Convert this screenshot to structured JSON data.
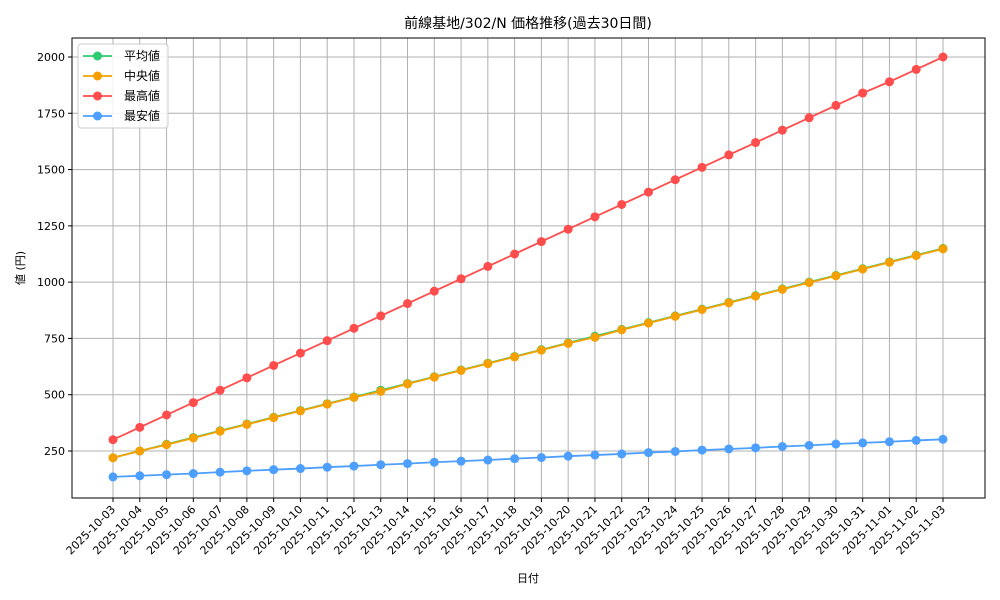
{
  "chart_data": {
    "type": "line",
    "title": "前線基地/302/N 価格推移(過去30日間)",
    "xlabel": "日付",
    "ylabel": "値 (円)",
    "ylim": [
      95,
      2080
    ],
    "yticks": [
      250,
      500,
      750,
      1000,
      1250,
      1500,
      1750,
      2000
    ],
    "grid": true,
    "legend_position": "upper left",
    "categories": [
      "2025-10-03",
      "2025-10-04",
      "2025-10-05",
      "2025-10-06",
      "2025-10-07",
      "2025-10-08",
      "2025-10-09",
      "2025-10-10",
      "2025-10-11",
      "2025-10-12",
      "2025-10-13",
      "2025-10-14",
      "2025-10-15",
      "2025-10-16",
      "2025-10-17",
      "2025-10-18",
      "2025-10-19",
      "2025-10-20",
      "2025-10-21",
      "2025-10-22",
      "2025-10-23",
      "2025-10-24",
      "2025-10-25",
      "2025-10-26",
      "2025-10-27",
      "2025-10-28",
      "2025-10-29",
      "2025-10-30",
      "2025-10-31",
      "2025-11-01",
      "2025-11-02",
      "2025-11-03"
    ],
    "series": [
      {
        "name": "平均値",
        "color": "#2ecc71",
        "values": [
          220,
          250,
          280,
          310,
          340,
          370,
          400,
          430,
          460,
          490,
          520,
          550,
          580,
          610,
          640,
          670,
          700,
          730,
          760,
          790,
          820,
          850,
          880,
          910,
          940,
          970,
          1000,
          1030,
          1060,
          1090,
          1120,
          1150
        ]
      },
      {
        "name": "中央値",
        "color": "#f5a000",
        "values": [
          220,
          250,
          278,
          308,
          338,
          368,
          398,
          428,
          458,
          488,
          515,
          548,
          578,
          608,
          638,
          668,
          698,
          728,
          755,
          788,
          818,
          848,
          878,
          908,
          938,
          968,
          998,
          1028,
          1058,
          1088,
          1118,
          1148
        ]
      },
      {
        "name": "最高値",
        "color": "#ff4d4d",
        "values": [
          300,
          355,
          410,
          465,
          520,
          575,
          630,
          685,
          740,
          795,
          850,
          905,
          960,
          1015,
          1070,
          1125,
          1180,
          1235,
          1290,
          1345,
          1400,
          1455,
          1510,
          1565,
          1620,
          1675,
          1730,
          1785,
          1840,
          1890,
          1945,
          2000
        ]
      },
      {
        "name": "最安値",
        "color": "#4d9fff",
        "values": [
          135,
          140,
          145,
          150,
          156,
          162,
          167,
          172,
          178,
          183,
          189,
          194,
          200,
          205,
          210,
          216,
          221,
          227,
          232,
          237,
          243,
          248,
          254,
          259,
          264,
          270,
          275,
          281,
          286,
          291,
          297,
          302
        ]
      }
    ]
  }
}
